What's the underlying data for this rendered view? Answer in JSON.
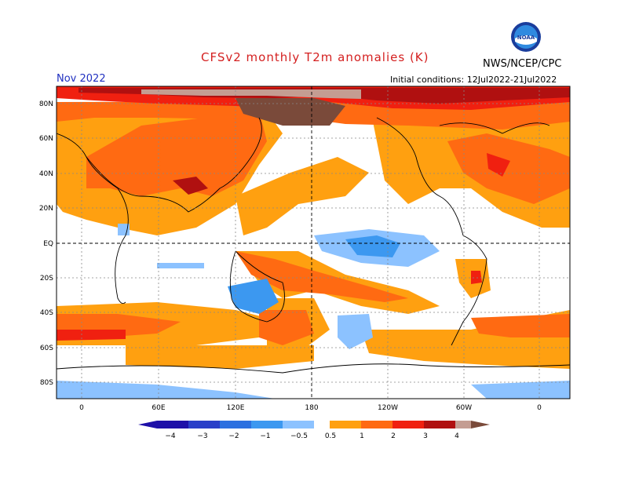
{
  "header": {
    "title": "CFSv2 monthly T2m anomalies (K)",
    "month": "Nov 2022",
    "initial_conditions": "Initial conditions: 12Jul2022-21Jul2022",
    "agency": "NWS/NCEP/CPC",
    "logo_text": "NOAA",
    "logo_icon": "noaa-logo-icon"
  },
  "map": {
    "lat_labels": [
      "80N",
      "60N",
      "40N",
      "20N",
      "EQ",
      "20S",
      "40S",
      "60S",
      "80S"
    ],
    "lon_labels": [
      "0",
      "60E",
      "120E",
      "180",
      "120W",
      "60W",
      "0"
    ]
  },
  "colorbar": {
    "tick_labels": [
      "−4",
      "−3",
      "−2",
      "−1",
      "−0.5",
      "0.5",
      "1",
      "2",
      "3",
      "4"
    ],
    "colors_negative": [
      "#1e10a8",
      "#2a3fc8",
      "#2c70e0",
      "#3c98f0",
      "#8cc2ff"
    ],
    "colors_positive": [
      "#ffa010",
      "#ff6a12",
      "#f02010",
      "#b01010",
      "#c49d92",
      "#7a4a3a"
    ]
  }
}
